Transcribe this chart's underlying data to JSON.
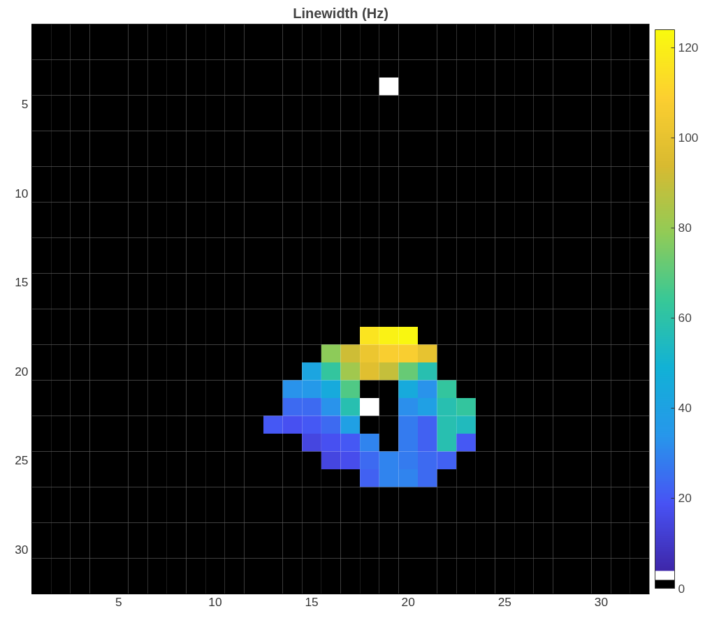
{
  "chart_data": {
    "type": "heatmap",
    "title": "Linewidth (Hz)",
    "x": [
      1,
      2,
      3,
      4,
      5,
      6,
      7,
      8,
      9,
      10,
      11,
      12,
      13,
      14,
      15,
      16,
      17,
      18,
      19,
      20,
      21,
      22,
      23,
      24,
      25,
      26,
      27,
      28,
      29,
      30,
      31,
      32
    ],
    "y": [
      1,
      2,
      3,
      4,
      5,
      6,
      7,
      8,
      9,
      10,
      11,
      12,
      13,
      14,
      15,
      16,
      17,
      18,
      19,
      20,
      21,
      22,
      23,
      24,
      25,
      26,
      27,
      28,
      29,
      30,
      31,
      32
    ],
    "xlim": [
      0.5,
      32.5
    ],
    "ylim": [
      32.5,
      0.5
    ],
    "xticks": [
      5,
      10,
      15,
      20,
      25,
      30
    ],
    "yticks": [
      5,
      10,
      15,
      20,
      25,
      30
    ],
    "clim": [
      0,
      124
    ],
    "cticks": [
      0,
      20,
      40,
      60,
      80,
      100,
      120
    ],
    "cells": [
      [
        0,
        0,
        0,
        0,
        0,
        0,
        0,
        0,
        0,
        0,
        0,
        0,
        0,
        0,
        0,
        0,
        0,
        0,
        0,
        0,
        0,
        0,
        0,
        0,
        0,
        0,
        0,
        0,
        0,
        0,
        0,
        0
      ],
      [
        0,
        0,
        0,
        0,
        0,
        0,
        0,
        0,
        0,
        0,
        0,
        0,
        0,
        0,
        0,
        0,
        0,
        0,
        0,
        0,
        0,
        0,
        0,
        0,
        0,
        0,
        0,
        0,
        0,
        0,
        0,
        0
      ],
      [
        0,
        0,
        0,
        0,
        0,
        0,
        0,
        0,
        0,
        0,
        0,
        0,
        0,
        0,
        0,
        0,
        0,
        0,
        0,
        0,
        0,
        0,
        0,
        0,
        0,
        0,
        0,
        0,
        0,
        0,
        0,
        0
      ],
      [
        0,
        0,
        0,
        0,
        0,
        0,
        0,
        0,
        0,
        0,
        0,
        0,
        0,
        0,
        0,
        0,
        0,
        0,
        3,
        0,
        0,
        0,
        0,
        0,
        0,
        0,
        0,
        0,
        0,
        0,
        0,
        0
      ],
      [
        0,
        0,
        0,
        0,
        0,
        0,
        0,
        0,
        0,
        0,
        0,
        0,
        0,
        0,
        0,
        0,
        0,
        0,
        0,
        0,
        0,
        0,
        0,
        0,
        0,
        0,
        0,
        0,
        0,
        0,
        0,
        0
      ],
      [
        0,
        0,
        0,
        0,
        0,
        0,
        0,
        0,
        0,
        0,
        0,
        0,
        0,
        0,
        0,
        0,
        0,
        0,
        0,
        0,
        0,
        0,
        0,
        0,
        0,
        0,
        0,
        0,
        0,
        0,
        0,
        0
      ],
      [
        0,
        0,
        0,
        0,
        0,
        0,
        0,
        0,
        0,
        0,
        0,
        0,
        0,
        0,
        0,
        0,
        0,
        0,
        0,
        0,
        0,
        0,
        0,
        0,
        0,
        0,
        0,
        0,
        0,
        0,
        0,
        0
      ],
      [
        0,
        0,
        0,
        0,
        0,
        0,
        0,
        0,
        0,
        0,
        0,
        0,
        0,
        0,
        0,
        0,
        0,
        0,
        0,
        0,
        0,
        0,
        0,
        0,
        0,
        0,
        0,
        0,
        0,
        0,
        0,
        0
      ],
      [
        0,
        0,
        0,
        0,
        0,
        0,
        0,
        0,
        0,
        0,
        0,
        0,
        0,
        0,
        0,
        0,
        0,
        0,
        0,
        0,
        0,
        0,
        0,
        0,
        0,
        0,
        0,
        0,
        0,
        0,
        0,
        0
      ],
      [
        0,
        0,
        0,
        0,
        0,
        0,
        0,
        0,
        0,
        0,
        0,
        0,
        0,
        0,
        0,
        0,
        0,
        0,
        0,
        0,
        0,
        0,
        0,
        0,
        0,
        0,
        0,
        0,
        0,
        0,
        0,
        0
      ],
      [
        0,
        0,
        0,
        0,
        0,
        0,
        0,
        0,
        0,
        0,
        0,
        0,
        0,
        0,
        0,
        0,
        0,
        0,
        0,
        0,
        0,
        0,
        0,
        0,
        0,
        0,
        0,
        0,
        0,
        0,
        0,
        0
      ],
      [
        0,
        0,
        0,
        0,
        0,
        0,
        0,
        0,
        0,
        0,
        0,
        0,
        0,
        0,
        0,
        0,
        0,
        0,
        0,
        0,
        0,
        0,
        0,
        0,
        0,
        0,
        0,
        0,
        0,
        0,
        0,
        0
      ],
      [
        0,
        0,
        0,
        0,
        0,
        0,
        0,
        0,
        0,
        0,
        0,
        0,
        0,
        0,
        0,
        0,
        0,
        0,
        0,
        0,
        0,
        0,
        0,
        0,
        0,
        0,
        0,
        0,
        0,
        0,
        0,
        0
      ],
      [
        0,
        0,
        0,
        0,
        0,
        0,
        0,
        0,
        0,
        0,
        0,
        0,
        0,
        0,
        0,
        0,
        0,
        0,
        0,
        0,
        0,
        0,
        0,
        0,
        0,
        0,
        0,
        0,
        0,
        0,
        0,
        0
      ],
      [
        0,
        0,
        0,
        0,
        0,
        0,
        0,
        0,
        0,
        0,
        0,
        0,
        0,
        0,
        0,
        0,
        0,
        0,
        0,
        0,
        0,
        0,
        0,
        0,
        0,
        0,
        0,
        0,
        0,
        0,
        0,
        0
      ],
      [
        0,
        0,
        0,
        0,
        0,
        0,
        0,
        0,
        0,
        0,
        0,
        0,
        0,
        0,
        0,
        0,
        0,
        0,
        0,
        0,
        0,
        0,
        0,
        0,
        0,
        0,
        0,
        0,
        0,
        0,
        0,
        0
      ],
      [
        0,
        0,
        0,
        0,
        0,
        0,
        0,
        0,
        0,
        0,
        0,
        0,
        0,
        0,
        0,
        0,
        0,
        0,
        0,
        0,
        0,
        0,
        0,
        0,
        0,
        0,
        0,
        0,
        0,
        0,
        0,
        0
      ],
      [
        0,
        0,
        0,
        0,
        0,
        0,
        0,
        0,
        0,
        0,
        0,
        0,
        0,
        0,
        0,
        0,
        0,
        116,
        121,
        123,
        0,
        0,
        0,
        0,
        0,
        0,
        0,
        0,
        0,
        0,
        0,
        0
      ],
      [
        0,
        0,
        0,
        0,
        0,
        0,
        0,
        0,
        0,
        0,
        0,
        0,
        0,
        0,
        0,
        78,
        92,
        102,
        108,
        108,
        100,
        0,
        0,
        0,
        0,
        0,
        0,
        0,
        0,
        0,
        0,
        0
      ],
      [
        0,
        0,
        0,
        0,
        0,
        0,
        0,
        0,
        0,
        0,
        0,
        0,
        0,
        0,
        42,
        62,
        82,
        97,
        90,
        72,
        58,
        0,
        0,
        0,
        0,
        0,
        0,
        0,
        0,
        0,
        0,
        0
      ],
      [
        0,
        0,
        0,
        0,
        0,
        0,
        0,
        0,
        0,
        0,
        0,
        0,
        0,
        33,
        35,
        45,
        68,
        0,
        0,
        45,
        33,
        62,
        0,
        0,
        0,
        0,
        0,
        0,
        0,
        0,
        0,
        0
      ],
      [
        0,
        0,
        0,
        0,
        0,
        0,
        0,
        0,
        0,
        0,
        0,
        0,
        0,
        24,
        24,
        33,
        58,
        3,
        0,
        32,
        39,
        58,
        62,
        0,
        0,
        0,
        0,
        0,
        0,
        0,
        0,
        0
      ],
      [
        0,
        0,
        0,
        0,
        0,
        0,
        0,
        0,
        0,
        0,
        0,
        0,
        20,
        18,
        20,
        24,
        39,
        0,
        0,
        28,
        22,
        58,
        55,
        0,
        0,
        0,
        0,
        0,
        0,
        0,
        0,
        0
      ],
      [
        0,
        0,
        0,
        0,
        0,
        0,
        0,
        0,
        0,
        0,
        0,
        0,
        0,
        0,
        15,
        18,
        20,
        30,
        0,
        28,
        22,
        58,
        20,
        0,
        0,
        0,
        0,
        0,
        0,
        0,
        0,
        0
      ],
      [
        0,
        0,
        0,
        0,
        0,
        0,
        0,
        0,
        0,
        0,
        0,
        0,
        0,
        0,
        0,
        15,
        17,
        24,
        30,
        28,
        24,
        22,
        0,
        0,
        0,
        0,
        0,
        0,
        0,
        0,
        0,
        0
      ],
      [
        0,
        0,
        0,
        0,
        0,
        0,
        0,
        0,
        0,
        0,
        0,
        0,
        0,
        0,
        0,
        0,
        0,
        22,
        30,
        30,
        24,
        0,
        0,
        0,
        0,
        0,
        0,
        0,
        0,
        0,
        0,
        0
      ],
      [
        0,
        0,
        0,
        0,
        0,
        0,
        0,
        0,
        0,
        0,
        0,
        0,
        0,
        0,
        0,
        0,
        0,
        0,
        0,
        0,
        0,
        0,
        0,
        0,
        0,
        0,
        0,
        0,
        0,
        0,
        0,
        0
      ],
      [
        0,
        0,
        0,
        0,
        0,
        0,
        0,
        0,
        0,
        0,
        0,
        0,
        0,
        0,
        0,
        0,
        0,
        0,
        0,
        0,
        0,
        0,
        0,
        0,
        0,
        0,
        0,
        0,
        0,
        0,
        0,
        0
      ],
      [
        0,
        0,
        0,
        0,
        0,
        0,
        0,
        0,
        0,
        0,
        0,
        0,
        0,
        0,
        0,
        0,
        0,
        0,
        0,
        0,
        0,
        0,
        0,
        0,
        0,
        0,
        0,
        0,
        0,
        0,
        0,
        0
      ],
      [
        0,
        0,
        0,
        0,
        0,
        0,
        0,
        0,
        0,
        0,
        0,
        0,
        0,
        0,
        0,
        0,
        0,
        0,
        0,
        0,
        0,
        0,
        0,
        0,
        0,
        0,
        0,
        0,
        0,
        0,
        0,
        0
      ],
      [
        0,
        0,
        0,
        0,
        0,
        0,
        0,
        0,
        0,
        0,
        0,
        0,
        0,
        0,
        0,
        0,
        0,
        0,
        0,
        0,
        0,
        0,
        0,
        0,
        0,
        0,
        0,
        0,
        0,
        0,
        0,
        0
      ],
      [
        0,
        0,
        0,
        0,
        0,
        0,
        0,
        0,
        0,
        0,
        0,
        0,
        0,
        0,
        0,
        0,
        0,
        0,
        0,
        0,
        0,
        0,
        0,
        0,
        0,
        0,
        0,
        0,
        0,
        0,
        0,
        0
      ]
    ]
  }
}
